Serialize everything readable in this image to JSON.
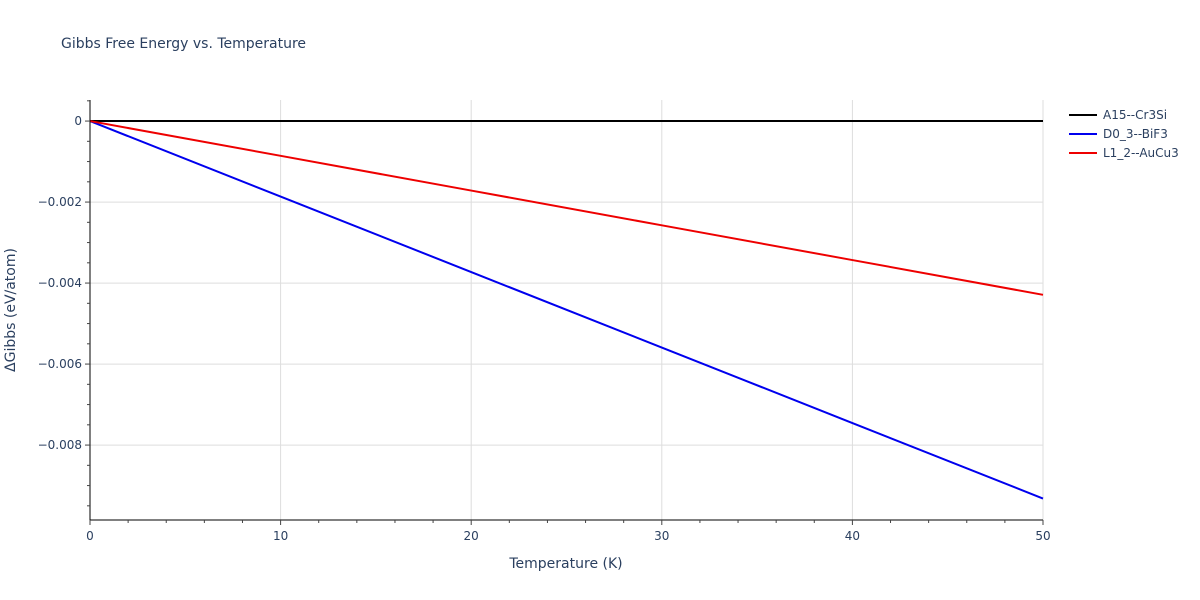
{
  "title": "Gibbs Free Energy vs. Temperature",
  "chart_data": {
    "type": "line",
    "title": "Gibbs Free Energy vs. Temperature",
    "xlabel": "Temperature (K)",
    "ylabel": "ΔGibbs (eV/atom)",
    "xlim": [
      0,
      50
    ],
    "ylim": [
      -0.00985,
      0.00052
    ],
    "x_ticks": [
      0,
      10,
      20,
      30,
      40,
      50
    ],
    "x_tick_labels": [
      "0",
      "10",
      "20",
      "30",
      "40",
      "50"
    ],
    "y_ticks": [
      0,
      -0.002,
      -0.004,
      -0.006,
      -0.008
    ],
    "y_tick_labels": [
      "0",
      "−0.002",
      "−0.004",
      "−0.006",
      "−0.008"
    ],
    "grid": true,
    "legend_position": "right-top",
    "x": [
      0,
      10,
      20,
      30,
      40,
      50
    ],
    "series": [
      {
        "name": "A15--Cr3Si",
        "color": "#000000",
        "values": [
          0,
          0,
          0,
          0,
          0,
          0
        ]
      },
      {
        "name": "D0_3--BiF3",
        "color": "#0000ee",
        "values": [
          0,
          -0.001864,
          -0.003728,
          -0.005592,
          -0.007456,
          -0.00932
        ]
      },
      {
        "name": "L1_2--AuCu3",
        "color": "#ee0000",
        "values": [
          0,
          -0.000858,
          -0.001716,
          -0.002574,
          -0.003432,
          -0.00429
        ]
      }
    ]
  },
  "legend": {
    "items": [
      {
        "label": "A15--Cr3Si",
        "color": "#000000"
      },
      {
        "label": "D0_3--BiF3",
        "color": "#0000ee"
      },
      {
        "label": "L1_2--AuCu3",
        "color": "#ee0000"
      }
    ]
  }
}
